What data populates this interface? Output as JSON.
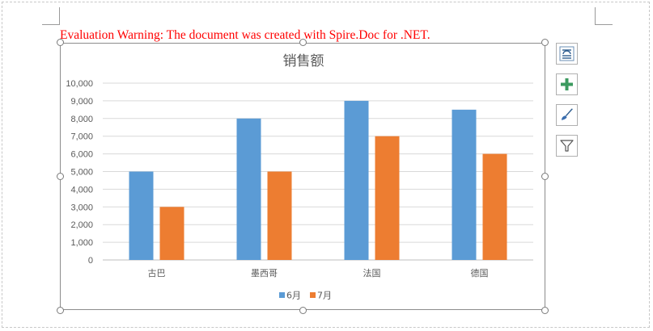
{
  "warning": "Evaluation Warning: The document was created with Spire.Doc for .NET.",
  "chart_tools": [
    {
      "name": "layout-options"
    },
    {
      "name": "chart-elements"
    },
    {
      "name": "chart-styles"
    },
    {
      "name": "chart-filters"
    }
  ],
  "colors": {
    "warning": "#ff0000",
    "series_june": "#5b9bd5",
    "series_july": "#ed7d31",
    "gridline": "#d9d9d9",
    "axis_text": "#595959"
  },
  "chart_data": {
    "type": "bar",
    "title": "销售额",
    "categories": [
      "古巴",
      "墨西哥",
      "法国",
      "德国"
    ],
    "series": [
      {
        "name": "6月",
        "values": [
          5000,
          8000,
          9000,
          8500
        ]
      },
      {
        "name": "7月",
        "values": [
          3000,
          5000,
          7000,
          6000
        ]
      }
    ],
    "ylim": [
      0,
      10000
    ],
    "yticks": [
      0,
      1000,
      2000,
      3000,
      4000,
      5000,
      6000,
      7000,
      8000,
      9000,
      10000
    ],
    "ytick_labels": [
      "0",
      "1,000",
      "2,000",
      "3,000",
      "4,000",
      "5,000",
      "6,000",
      "7,000",
      "8,000",
      "9,000",
      "10,000"
    ],
    "grid": true,
    "legend": "bottom"
  }
}
